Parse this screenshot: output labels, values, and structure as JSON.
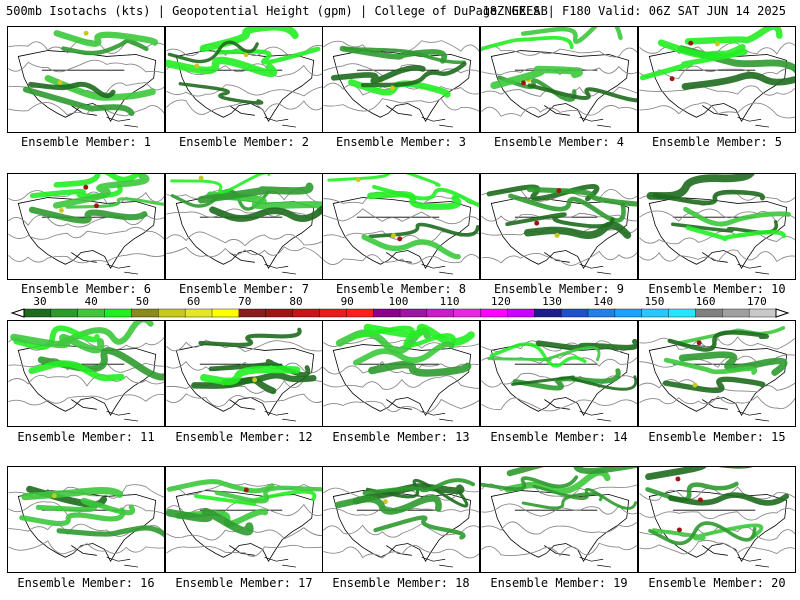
{
  "header": {
    "title_left": "500mb Isotachs (kts) | Geopotential Height (gpm) | College of DuPage NEXLAB",
    "title_right": "18Z GEFS | F180 Valid: 06Z SAT JUN 14 2025"
  },
  "panels": [
    {
      "label": "Ensemble Member: 1"
    },
    {
      "label": "Ensemble Member: 2"
    },
    {
      "label": "Ensemble Member: 3"
    },
    {
      "label": "Ensemble Member: 4"
    },
    {
      "label": "Ensemble Member: 5"
    },
    {
      "label": "Ensemble Member: 6"
    },
    {
      "label": "Ensemble Member: 7"
    },
    {
      "label": "Ensemble Member: 8"
    },
    {
      "label": "Ensemble Member: 9"
    },
    {
      "label": "Ensemble Member: 10"
    },
    {
      "label": "Ensemble Member: 11"
    },
    {
      "label": "Ensemble Member: 12"
    },
    {
      "label": "Ensemble Member: 13"
    },
    {
      "label": "Ensemble Member: 14"
    },
    {
      "label": "Ensemble Member: 15"
    },
    {
      "label": "Ensemble Member: 16"
    },
    {
      "label": "Ensemble Member: 17"
    },
    {
      "label": "Ensemble Member: 18"
    },
    {
      "label": "Ensemble Member: 19"
    },
    {
      "label": "Ensemble Member: 20"
    }
  ],
  "colorbar": {
    "labels": [
      "30",
      "40",
      "50",
      "60",
      "70",
      "80",
      "90",
      "100",
      "110",
      "120",
      "130",
      "140",
      "150",
      "160",
      "170"
    ],
    "colors": [
      "#1e6b1e",
      "#2e9a2e",
      "#3cc83c",
      "#22ee22",
      "#8a8a1e",
      "#c8c81e",
      "#e6e628",
      "#ffff00",
      "#8a1e1e",
      "#a01414",
      "#c81414",
      "#e61e1e",
      "#ff1e1e",
      "#8a008a",
      "#a014a0",
      "#c81ec8",
      "#e628e6",
      "#ff00ff",
      "#c800ff",
      "#1e1e8a",
      "#1e50c8",
      "#1e82e6",
      "#1ea0ff",
      "#28c8ff",
      "#28e6ff",
      "#808080",
      "#a0a0a0",
      "#c8c8c8"
    ]
  }
}
